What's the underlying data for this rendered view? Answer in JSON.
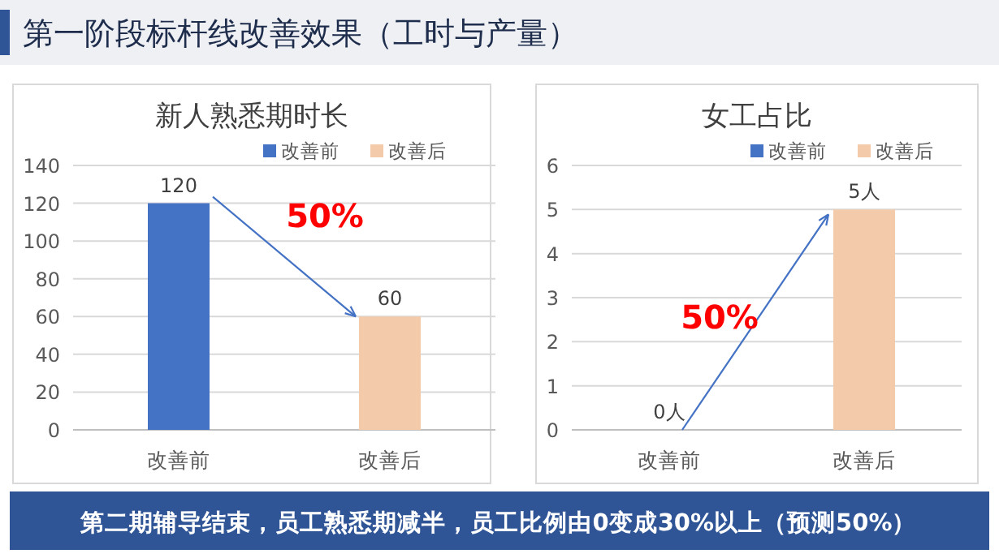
{
  "chart_data": [
    {
      "type": "other",
      "title": "第一阶段标杆线改善效果（工时与产量）",
      "annotations": [
        "第二期辅导结束，员工熟悉期减半，员工比例由0变成30%以上（预测50%）"
      ]
    },
    {
      "type": "bar",
      "title": "新人熟悉期时长",
      "categories": [
        "改善前",
        "改善后"
      ],
      "series": [
        {
          "name": "改善前",
          "color": "#4472c4",
          "values": [
            120,
            null
          ]
        },
        {
          "name": "改善后",
          "color": "#f4cbaa",
          "values": [
            null,
            60
          ]
        }
      ],
      "ylim": [
        0,
        140
      ],
      "yticks": [
        0,
        20,
        40,
        60,
        80,
        100,
        120,
        140
      ],
      "grid": "y",
      "legend": "top right",
      "data_labels": true,
      "annotations": [
        "50%"
      ]
    },
    {
      "type": "bar",
      "title": "女工占比",
      "categories": [
        "改善前",
        "改善后"
      ],
      "series": [
        {
          "name": "改善前",
          "color": "#4472c4",
          "values": [
            0,
            null
          ],
          "value_labels": [
            "0人",
            null
          ]
        },
        {
          "name": "改善后",
          "color": "#f4cbaa",
          "values": [
            null,
            5
          ],
          "value_labels": [
            null,
            "5人"
          ]
        }
      ],
      "ylim": [
        0,
        6
      ],
      "yticks": [
        0,
        1,
        2,
        3,
        4,
        5,
        6
      ],
      "grid": "y",
      "legend": "top right",
      "annotations": [
        "50%"
      ]
    }
  ]
}
